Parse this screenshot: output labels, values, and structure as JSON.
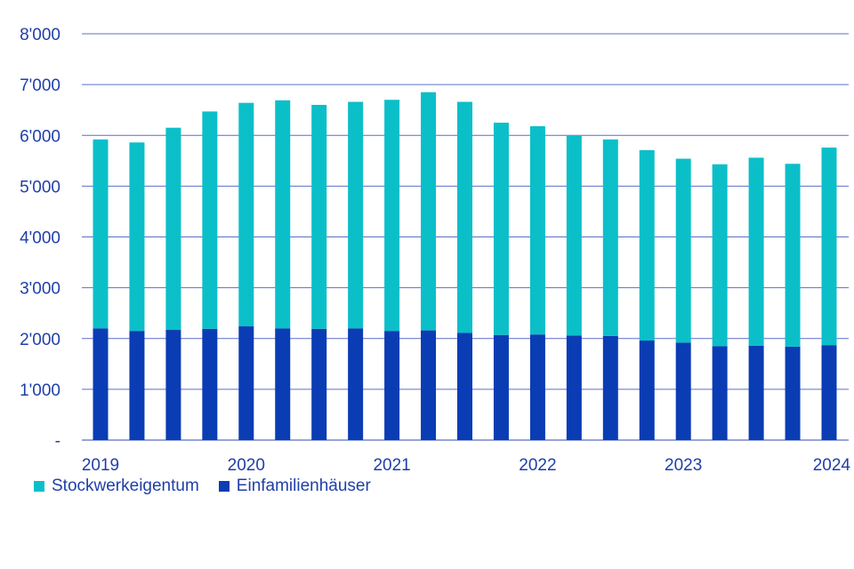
{
  "chart_data": {
    "type": "bar",
    "stacked": true,
    "x": [
      "2019",
      "",
      "",
      "",
      "2020",
      "",
      "",
      "",
      "2021",
      "",
      "",
      "",
      "2022",
      "",
      "",
      "",
      "2023",
      "",
      "",
      "",
      "2024"
    ],
    "series": [
      {
        "name": "Einfamilienhäuser",
        "color": "#0a3cb4",
        "values": [
          2200,
          2150,
          2170,
          2190,
          2240,
          2200,
          2190,
          2200,
          2150,
          2160,
          2110,
          2070,
          2080,
          2060,
          2050,
          1960,
          1920,
          1850,
          1860,
          1840,
          1870
        ]
      },
      {
        "name": "Stockwerkeigentum",
        "color": "#0bbfc9",
        "values": [
          3720,
          3710,
          3980,
          4280,
          4400,
          4490,
          4410,
          4460,
          4550,
          4690,
          4550,
          4180,
          4100,
          3930,
          3870,
          3750,
          3620,
          3580,
          3700,
          3600,
          3890
        ]
      }
    ],
    "ylim": [
      0,
      8000
    ],
    "yticks": [
      0,
      1000,
      2000,
      3000,
      4000,
      5000,
      6000,
      7000,
      8000
    ],
    "ytick_labels": [
      "-",
      "1'000",
      "2'000",
      "3'000",
      "4'000",
      "5'000",
      "6'000",
      "7'000",
      "8'000"
    ],
    "grid": true,
    "legend_position": "bottom-left",
    "legend": [
      "Stockwerkeigentum",
      "Einfamilienhäuser"
    ]
  }
}
